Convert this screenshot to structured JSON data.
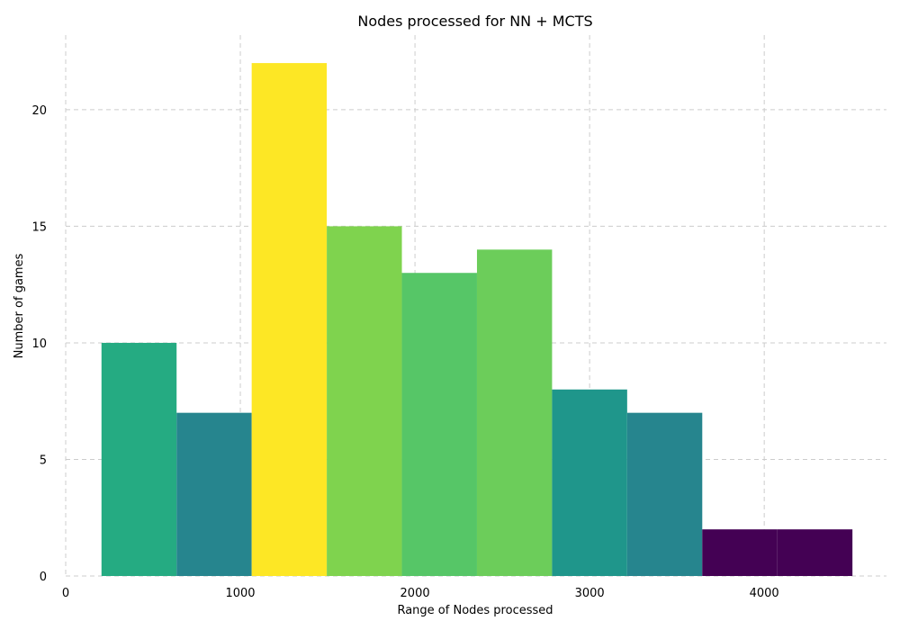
{
  "chart_data": {
    "type": "bar",
    "title": "Nodes processed for NN + MCTS",
    "xlabel": "Range of Nodes processed",
    "ylabel": "Number of games",
    "xlim": [
      0,
      4700
    ],
    "ylim": [
      0,
      23.2
    ],
    "xticks": [
      0,
      1000,
      2000,
      3000,
      4000
    ],
    "yticks": [
      0,
      5,
      10,
      15,
      20
    ],
    "grid": true,
    "bins": [
      {
        "start": 205,
        "end": 635,
        "count": 10,
        "color": "#25ab82"
      },
      {
        "start": 635,
        "end": 1065,
        "count": 7,
        "color": "#26858e"
      },
      {
        "start": 1065,
        "end": 1495,
        "count": 22,
        "color": "#fde725"
      },
      {
        "start": 1495,
        "end": 1925,
        "count": 15,
        "color": "#7fd34e"
      },
      {
        "start": 1925,
        "end": 2355,
        "count": 13,
        "color": "#56c667"
      },
      {
        "start": 2355,
        "end": 2785,
        "count": 14,
        "color": "#6ccd5a"
      },
      {
        "start": 2785,
        "end": 3215,
        "count": 8,
        "color": "#1f968b"
      },
      {
        "start": 3215,
        "end": 3645,
        "count": 7,
        "color": "#26858e"
      },
      {
        "start": 3645,
        "end": 4075,
        "count": 2,
        "color": "#440154"
      },
      {
        "start": 4075,
        "end": 4505,
        "count": 2,
        "color": "#440154"
      }
    ]
  }
}
